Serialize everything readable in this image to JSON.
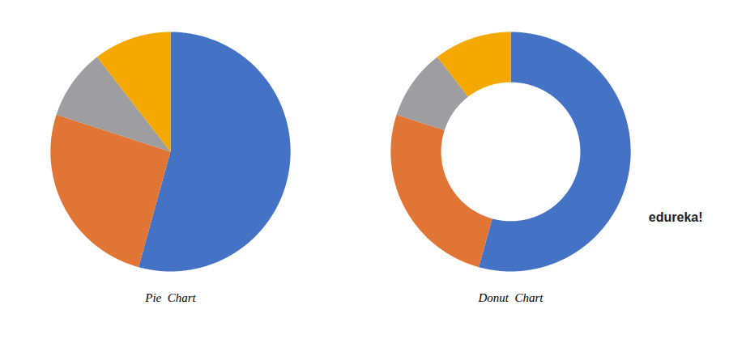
{
  "chart_data": [
    {
      "type": "pie",
      "title": "Pie  Chart",
      "values": [
        57,
        27,
        10,
        11
      ],
      "colors": [
        "#4472C4",
        "#E07535",
        "#9E9EA0",
        "#F5A800"
      ]
    },
    {
      "type": "donut",
      "title": "Donut  Chart",
      "values": [
        57,
        27,
        10,
        11
      ],
      "colors": [
        "#4472C4",
        "#E07535",
        "#9E9EA0",
        "#F5A800"
      ],
      "annotations": [
        {
          "text": "edureka!",
          "color": "#222222"
        }
      ]
    }
  ]
}
